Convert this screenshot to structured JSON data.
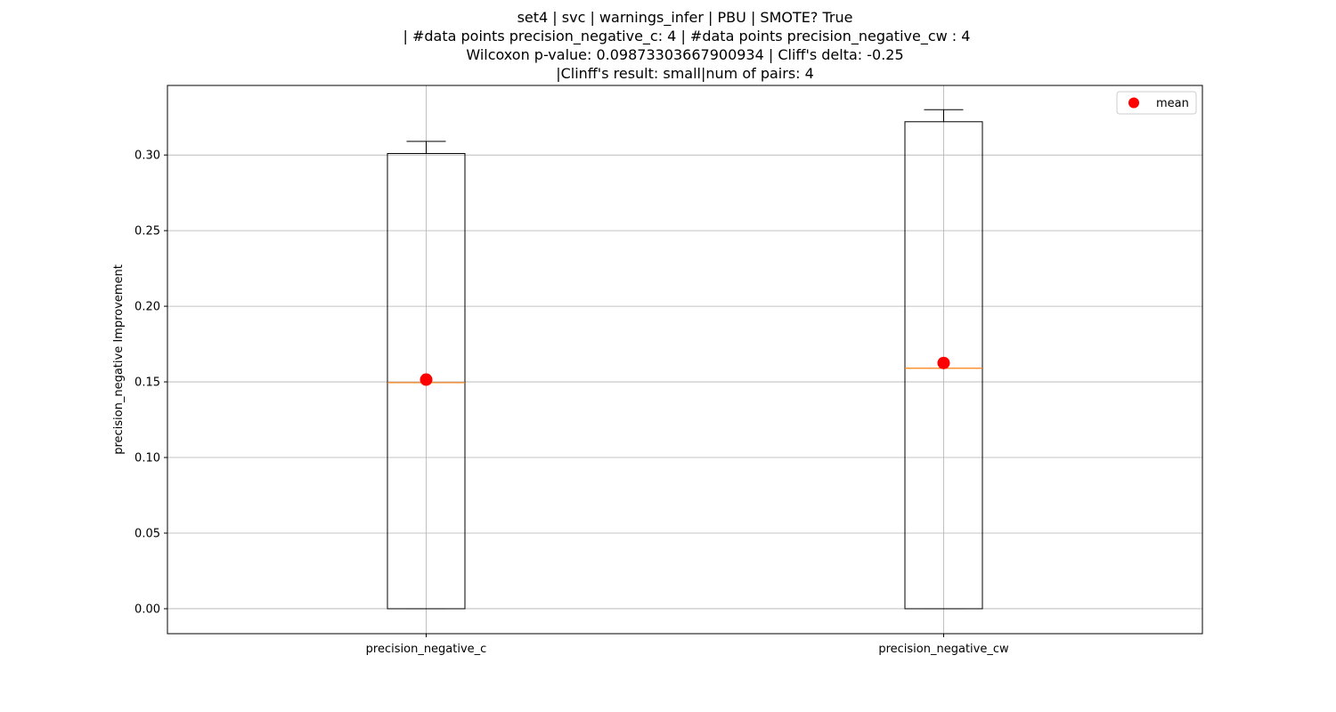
{
  "chart_data": {
    "type": "box",
    "title_lines": [
      "set4 | svc | warnings_infer | PBU | SMOTE? True",
      "| #data points precision_negative_c: 4 | #data points precision_negative_cw : 4",
      "Wilcoxon p-value: 0.09873303667900934 | Cliff's delta: -0.25",
      "|Clinff's result: small|num of pairs: 4"
    ],
    "xlabel": "",
    "ylabel": "precision_negative Improvement",
    "ylim": [
      -0.0165,
      0.346
    ],
    "yticks": [
      0.0,
      0.05,
      0.1,
      0.15,
      0.2,
      0.25,
      0.3
    ],
    "ytick_labels": [
      "0.00",
      "0.05",
      "0.10",
      "0.15",
      "0.20",
      "0.25",
      "0.30"
    ],
    "grid": true,
    "legend": {
      "placement": "top-right",
      "entries": [
        {
          "label": "mean",
          "color": "#ff0000"
        }
      ]
    },
    "categories": [
      "precision_negative_c",
      "precision_negative_cw"
    ],
    "boxes": [
      {
        "name": "precision_negative_c",
        "whisker_low": 0.0,
        "q1": 0.0,
        "median": 0.1495,
        "q3": 0.301,
        "whisker_high": 0.309,
        "mean": 0.1515
      },
      {
        "name": "precision_negative_cw",
        "whisker_low": 0.0,
        "q1": 0.0,
        "median": 0.159,
        "q3": 0.322,
        "whisker_high": 0.33,
        "mean": 0.1625
      }
    ],
    "colors": {
      "box": "#000000",
      "median": "#ff7f0e",
      "mean": "#ff0000",
      "grid": "#b0b0b0"
    }
  }
}
